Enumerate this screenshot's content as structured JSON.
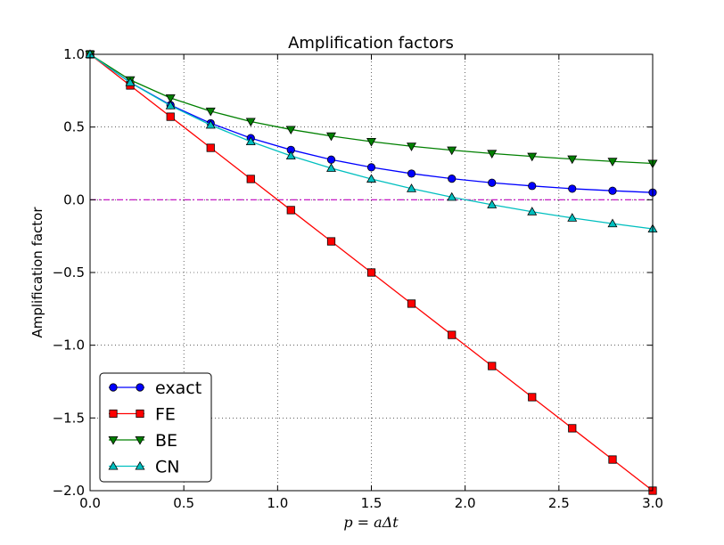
{
  "chart_data": {
    "type": "line",
    "title": "Amplification factors",
    "xlabel": "p = aΔt",
    "ylabel": "Amplification factor",
    "xlim": [
      0.0,
      3.0
    ],
    "ylim": [
      -2.0,
      1.0
    ],
    "xticks": [
      0.0,
      0.5,
      1.0,
      1.5,
      2.0,
      2.5,
      3.0
    ],
    "xtick_labels": [
      "0.0",
      "0.5",
      "1.0",
      "1.5",
      "2.0",
      "2.5",
      "3.0"
    ],
    "yticks": [
      1.0,
      0.5,
      0.0,
      -0.5,
      -1.0,
      -1.5,
      -2.0
    ],
    "ytick_labels": [
      "1.0",
      "0.5",
      "0.0",
      "−0.5",
      "−1.0",
      "−1.5",
      "−2.0"
    ],
    "grid": true,
    "legend_position": "lower-left",
    "x": [
      0.0,
      0.214,
      0.429,
      0.643,
      0.857,
      1.071,
      1.286,
      1.5,
      1.714,
      1.929,
      2.143,
      2.357,
      2.571,
      2.786,
      3.0
    ],
    "series": [
      {
        "name": "exact",
        "color": "#0000ff",
        "marker": "circle",
        "values": [
          1.0,
          0.807,
          0.651,
          0.526,
          0.424,
          0.343,
          0.276,
          0.223,
          0.18,
          0.145,
          0.117,
          0.095,
          0.076,
          0.062,
          0.05
        ]
      },
      {
        "name": "FE",
        "color": "#ff0000",
        "marker": "square",
        "values": [
          1.0,
          0.786,
          0.571,
          0.357,
          0.143,
          -0.071,
          -0.286,
          -0.5,
          -0.714,
          -0.929,
          -1.143,
          -1.357,
          -1.571,
          -1.786,
          -2.0
        ]
      },
      {
        "name": "BE",
        "color": "#008000",
        "marker": "triangle-down",
        "values": [
          1.0,
          0.824,
          0.7,
          0.609,
          0.538,
          0.483,
          0.438,
          0.4,
          0.368,
          0.341,
          0.318,
          0.298,
          0.28,
          0.264,
          0.25
        ]
      },
      {
        "name": "CN",
        "color": "#00bfbf",
        "marker": "triangle-up",
        "values": [
          1.0,
          0.806,
          0.647,
          0.514,
          0.4,
          0.302,
          0.217,
          0.143,
          0.077,
          0.018,
          -0.034,
          -0.082,
          -0.125,
          -0.164,
          -0.2
        ]
      }
    ],
    "reference_line": {
      "y": 0.0,
      "color": "#bf00bf",
      "style": "dash-dot"
    }
  }
}
